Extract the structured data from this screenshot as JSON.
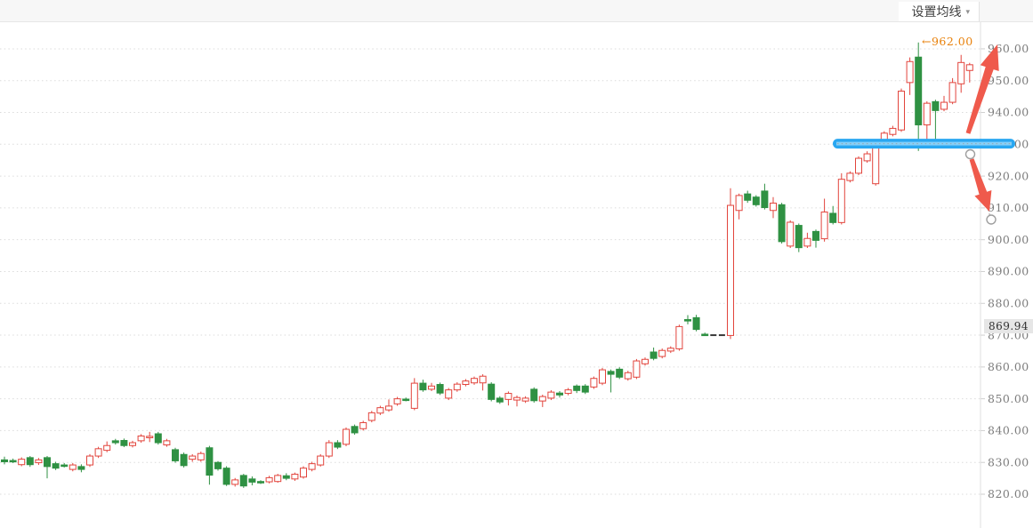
{
  "header": {
    "ma_button_label": "设置均线",
    "caret_icon": "▾"
  },
  "y_axis": {
    "labels": [
      "960.00",
      "950.00",
      "940.00",
      "930.00",
      "920.00",
      "910.00",
      "900.00",
      "890.00",
      "880.00",
      "870.00",
      "860.00",
      "850.00",
      "840.00",
      "830.00",
      "820.00"
    ],
    "current_price_tag": "869.94"
  },
  "annotations": {
    "high_price_label": "←962.00",
    "high_price_value": 962.0,
    "support_bar": {
      "price": 930.2,
      "color": "#29a7f1",
      "inner_color": "#86cff7"
    },
    "up_trend_arrow": {
      "color": "#ef5a4c",
      "direction": "up-right"
    },
    "down_trend_arrow": {
      "color": "#ef5a4c",
      "direction": "down-right"
    }
  },
  "colors": {
    "up": "#e2443c",
    "down": "#2f9143",
    "flat": "#3a3a3a",
    "grid": "#dbdbdb",
    "axis_line": "#dfdfdf",
    "axis_text": "#7c7c7c",
    "annotation_handle": "#9e9e9e",
    "high_label_orange": "#e8810b"
  },
  "chart_data": {
    "type": "candlestick",
    "ylim": [
      820,
      960
    ],
    "grid_step": 10,
    "grid": "dotted-horizontal",
    "legend_position": "none",
    "note": "candles are [open, high, low, close, type] with type u=up(red hollow) d=down(green solid) f=flat(black dash)",
    "candles": [
      [
        830.8,
        831.8,
        829.4,
        830.2,
        "d"
      ],
      [
        830.6,
        831.2,
        829.8,
        830.4,
        "d"
      ],
      [
        829.3,
        831.6,
        828.8,
        831.0,
        "u"
      ],
      [
        831.5,
        832.0,
        828.6,
        829.3,
        "d"
      ],
      [
        829.9,
        831.4,
        829.2,
        830.8,
        "u"
      ],
      [
        831.5,
        832.0,
        825.0,
        828.7,
        "d"
      ],
      [
        829.6,
        830.2,
        827.6,
        828.2,
        "d"
      ],
      [
        829.2,
        829.8,
        828.4,
        829.0,
        "d"
      ],
      [
        827.8,
        829.8,
        827.2,
        829.2,
        "u"
      ],
      [
        828.7,
        829.4,
        826.9,
        827.8,
        "d"
      ],
      [
        829.2,
        832.6,
        828.6,
        832.0,
        "u"
      ],
      [
        832.0,
        834.9,
        831.4,
        834.3,
        "u"
      ],
      [
        833.8,
        836.6,
        833.2,
        835.3,
        "u"
      ],
      [
        836.8,
        837.4,
        835.6,
        836.2,
        "d"
      ],
      [
        836.9,
        837.5,
        834.8,
        835.3,
        "d"
      ],
      [
        835.3,
        836.8,
        834.7,
        836.2,
        "u"
      ],
      [
        836.8,
        838.9,
        836.2,
        838.3,
        "u"
      ],
      [
        837.8,
        839.6,
        836.4,
        838.2,
        "u"
      ],
      [
        839.0,
        839.6,
        835.6,
        836.2,
        "d"
      ],
      [
        835.5,
        837.4,
        834.9,
        836.8,
        "u"
      ],
      [
        834.0,
        834.6,
        829.9,
        830.5,
        "d"
      ],
      [
        832.5,
        833.1,
        828.4,
        829.0,
        "d"
      ],
      [
        831.0,
        832.6,
        830.2,
        832.0,
        "u"
      ],
      [
        830.8,
        833.4,
        830.2,
        832.8,
        "u"
      ],
      [
        834.6,
        835.2,
        823.0,
        826.0,
        "d"
      ],
      [
        830.0,
        830.4,
        827.4,
        828.0,
        "d"
      ],
      [
        828.2,
        828.8,
        822.6,
        823.1,
        "d"
      ],
      [
        823.1,
        825.1,
        822.4,
        824.5,
        "u"
      ],
      [
        825.9,
        826.4,
        822.0,
        822.6,
        "d"
      ],
      [
        824.8,
        825.6,
        822.8,
        823.8,
        "d"
      ],
      [
        824.0,
        824.4,
        823.2,
        823.7,
        "d"
      ],
      [
        823.9,
        825.8,
        823.4,
        825.2,
        "u"
      ],
      [
        824.0,
        826.4,
        823.6,
        825.9,
        "u"
      ],
      [
        825.8,
        826.6,
        824.4,
        825.0,
        "d"
      ],
      [
        824.8,
        826.8,
        824.2,
        826.3,
        "u"
      ],
      [
        825.4,
        828.8,
        824.9,
        828.2,
        "u"
      ],
      [
        827.8,
        830.2,
        827.2,
        829.6,
        "u"
      ],
      [
        829.2,
        832.6,
        828.7,
        832.0,
        "u"
      ],
      [
        832.0,
        837.0,
        831.4,
        836.2,
        "u"
      ],
      [
        836.2,
        837.0,
        834.2,
        834.8,
        "d"
      ],
      [
        835.7,
        841.0,
        835.1,
        840.4,
        "u"
      ],
      [
        841.3,
        841.9,
        838.7,
        839.3,
        "d"
      ],
      [
        840.6,
        843.1,
        840.0,
        842.5,
        "u"
      ],
      [
        843.2,
        846.2,
        842.6,
        845.6,
        "u"
      ],
      [
        845.5,
        847.8,
        844.9,
        847.2,
        "u"
      ],
      [
        846.5,
        849.8,
        845.9,
        847.7,
        "u"
      ],
      [
        848.4,
        850.6,
        847.8,
        850.0,
        "u"
      ],
      [
        849.9,
        850.4,
        849.2,
        849.7,
        "d"
      ],
      [
        847.0,
        856.5,
        846.4,
        854.9,
        "u"
      ],
      [
        854.9,
        856.0,
        852.2,
        852.8,
        "d"
      ],
      [
        853.0,
        855.0,
        852.4,
        854.0,
        "u"
      ],
      [
        854.5,
        855.1,
        851.2,
        851.8,
        "d"
      ],
      [
        850.2,
        853.4,
        849.6,
        852.8,
        "u"
      ],
      [
        852.8,
        855.2,
        852.2,
        854.6,
        "u"
      ],
      [
        854.5,
        856.2,
        853.9,
        855.6,
        "u"
      ],
      [
        855.0,
        857.0,
        854.4,
        856.4,
        "u"
      ],
      [
        855.0,
        857.7,
        852.6,
        857.1,
        "u"
      ],
      [
        854.6,
        855.2,
        849.2,
        849.8,
        "d"
      ],
      [
        850.2,
        850.8,
        848.4,
        849.0,
        "d"
      ],
      [
        849.8,
        852.3,
        847.9,
        851.7,
        "u"
      ],
      [
        849.6,
        851.0,
        847.6,
        850.4,
        "u"
      ],
      [
        849.3,
        850.8,
        848.7,
        850.2,
        "u"
      ],
      [
        853.0,
        853.6,
        848.8,
        849.4,
        "d"
      ],
      [
        849.3,
        851.3,
        847.4,
        850.7,
        "u"
      ],
      [
        850.2,
        852.7,
        849.6,
        852.1,
        "u"
      ],
      [
        851.8,
        852.4,
        850.4,
        851.2,
        "d"
      ],
      [
        851.7,
        853.4,
        851.1,
        852.8,
        "u"
      ],
      [
        854.0,
        854.5,
        851.8,
        852.6,
        "d"
      ],
      [
        854.0,
        854.6,
        851.5,
        852.1,
        "d"
      ],
      [
        853.7,
        857.0,
        853.1,
        856.4,
        "u"
      ],
      [
        854.9,
        859.7,
        854.3,
        859.1,
        "u"
      ],
      [
        858.6,
        859.2,
        852.0,
        857.7,
        "d"
      ],
      [
        859.3,
        859.9,
        856.2,
        856.8,
        "d"
      ],
      [
        856.3,
        858.8,
        855.7,
        858.2,
        "u"
      ],
      [
        856.8,
        862.5,
        856.2,
        861.9,
        "u"
      ],
      [
        861.0,
        863.0,
        860.4,
        862.4,
        "u"
      ],
      [
        864.7,
        866.1,
        862.1,
        862.7,
        "d"
      ],
      [
        863.3,
        865.8,
        862.7,
        865.2,
        "u"
      ],
      [
        865.0,
        866.5,
        864.4,
        865.9,
        "u"
      ],
      [
        865.7,
        873.3,
        865.1,
        872.7,
        "u"
      ],
      [
        874.9,
        876.3,
        873.4,
        874.5,
        "d"
      ],
      [
        875.5,
        876.4,
        871.2,
        871.8,
        "d"
      ],
      [
        870.3,
        870.8,
        869.8,
        870.2,
        "d"
      ],
      [
        870.0,
        870.0,
        870.0,
        870.0,
        "f"
      ],
      [
        870.0,
        870.0,
        870.0,
        870.0,
        "f"
      ],
      [
        869.9,
        916.2,
        868.8,
        910.8,
        "u"
      ],
      [
        909.2,
        914.5,
        906.4,
        913.9,
        "u"
      ],
      [
        914.4,
        915.4,
        911.6,
        912.4,
        "d"
      ],
      [
        913.4,
        914.0,
        910.4,
        911.0,
        "d"
      ],
      [
        915.3,
        917.6,
        909.5,
        910.1,
        "d"
      ],
      [
        909.2,
        913.4,
        906.8,
        911.5,
        "u"
      ],
      [
        911.0,
        911.6,
        898.8,
        899.4,
        "d"
      ],
      [
        898.0,
        906.1,
        897.4,
        905.5,
        "u"
      ],
      [
        904.5,
        905.1,
        896.1,
        897.5,
        "d"
      ],
      [
        898.0,
        902.2,
        897.4,
        900.4,
        "u"
      ],
      [
        902.6,
        903.2,
        897.5,
        899.8,
        "d"
      ],
      [
        900.3,
        912.9,
        899.4,
        908.7,
        "u"
      ],
      [
        908.3,
        910.6,
        904.8,
        905.4,
        "d"
      ],
      [
        905.4,
        920.9,
        904.8,
        919.0,
        "u"
      ],
      [
        918.6,
        921.5,
        918.0,
        920.9,
        "u"
      ],
      [
        920.9,
        926.2,
        920.3,
        925.6,
        "u"
      ],
      [
        924.8,
        927.8,
        924.2,
        927.0,
        "u"
      ],
      [
        917.6,
        931.3,
        917.0,
        930.7,
        "u"
      ],
      [
        930.3,
        934.1,
        929.7,
        933.5,
        "u"
      ],
      [
        933.1,
        935.8,
        932.5,
        935.0,
        "u"
      ],
      [
        934.5,
        947.5,
        933.9,
        946.7,
        "u"
      ],
      [
        949.4,
        957.3,
        945.5,
        956.0,
        "u"
      ],
      [
        957.4,
        962.0,
        927.9,
        936.1,
        "d"
      ],
      [
        936.1,
        943.5,
        929.0,
        942.9,
        "u"
      ],
      [
        943.4,
        944.0,
        931.2,
        940.6,
        "d"
      ],
      [
        941.0,
        945.2,
        940.4,
        943.2,
        "u"
      ],
      [
        943.2,
        950.8,
        942.6,
        949.4,
        "u"
      ],
      [
        949.0,
        958.1,
        946.2,
        955.7,
        "u"
      ],
      [
        953.2,
        955.6,
        949.4,
        955.0,
        "u"
      ]
    ]
  }
}
